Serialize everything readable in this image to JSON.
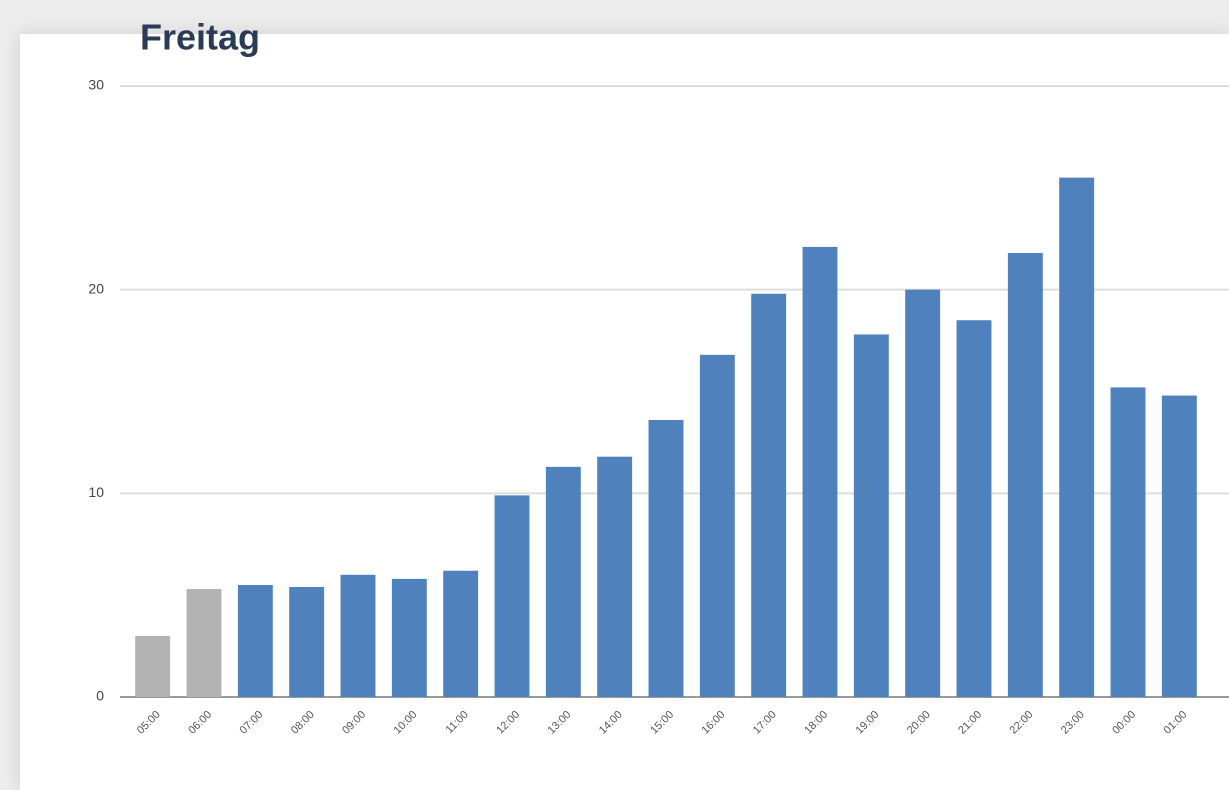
{
  "chart_data": {
    "type": "bar",
    "title": "Freitag",
    "categories": [
      "05:00",
      "06:00",
      "07:00",
      "08:00",
      "09:00",
      "10:00",
      "11:00",
      "12:00",
      "13:00",
      "14:00",
      "15:00",
      "16:00",
      "17:00",
      "18:00",
      "19:00",
      "20:00",
      "21:00",
      "22:00",
      "23:00",
      "00:00",
      "01:00"
    ],
    "values": [
      3.0,
      5.3,
      5.5,
      5.4,
      6.0,
      5.8,
      6.2,
      9.9,
      11.3,
      11.8,
      13.6,
      16.8,
      19.8,
      22.1,
      17.8,
      20.0,
      18.5,
      21.8,
      25.5,
      15.2,
      14.8
    ],
    "colors": [
      "#b3b3b3",
      "#b3b3b3",
      "#4f81bd",
      "#4f81bd",
      "#4f81bd",
      "#4f81bd",
      "#4f81bd",
      "#4f81bd",
      "#4f81bd",
      "#4f81bd",
      "#4f81bd",
      "#4f81bd",
      "#4f81bd",
      "#4f81bd",
      "#4f81bd",
      "#4f81bd",
      "#4f81bd",
      "#4f81bd",
      "#4f81bd",
      "#4f81bd",
      "#4f81bd"
    ],
    "ylim": [
      0,
      30
    ],
    "yticks": [
      0,
      10,
      20,
      30
    ],
    "grid": true
  }
}
